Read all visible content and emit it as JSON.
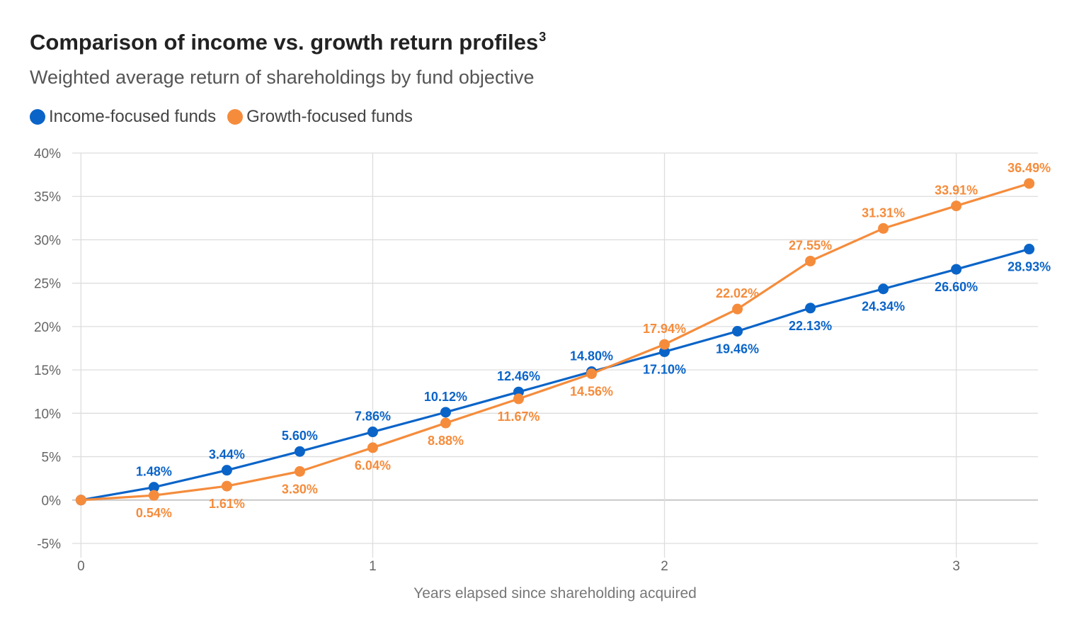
{
  "chart_data": {
    "type": "line",
    "title": "Comparison of income vs. growth return profiles",
    "title_superscript": "3",
    "subtitle": "Weighted average return of shareholdings by fund objective",
    "xlabel": "Years elapsed since shareholding acquired",
    "ylabel": "",
    "x": [
      0,
      0.25,
      0.5,
      0.75,
      1,
      1.25,
      1.5,
      1.75,
      2,
      2.25,
      2.5,
      2.75,
      3,
      3.25
    ],
    "xlim": [
      -0.03,
      3.28
    ],
    "ylim": [
      -5,
      40
    ],
    "x_ticks": [
      0,
      1,
      2,
      3
    ],
    "y_ticks": [
      -5,
      0,
      5,
      10,
      15,
      20,
      25,
      30,
      35,
      40
    ],
    "y_tick_labels": [
      "-5%",
      "0%",
      "5%",
      "10%",
      "15%",
      "20%",
      "25%",
      "30%",
      "35%",
      "40%"
    ],
    "grid": true,
    "legend_position": "top-left",
    "series": [
      {
        "name": "Income-focused funds",
        "color": "#0a64c8",
        "values": [
          0,
          1.48,
          3.44,
          5.6,
          7.86,
          10.12,
          12.46,
          14.8,
          17.1,
          19.46,
          22.13,
          24.34,
          26.6,
          28.93
        ],
        "labels": [
          "",
          "1.48%",
          "3.44%",
          "5.60%",
          "7.86%",
          "10.12%",
          "12.46%",
          "14.80%",
          "17.10%",
          "19.46%",
          "22.13%",
          "24.34%",
          "26.60%",
          "28.93%"
        ],
        "label_pos": [
          "",
          "above",
          "above",
          "above",
          "above",
          "above",
          "above",
          "above",
          "below",
          "below",
          "below",
          "below",
          "below",
          "below"
        ]
      },
      {
        "name": "Growth-focused funds",
        "color": "#f58c3c",
        "values": [
          0,
          0.54,
          1.61,
          3.3,
          6.04,
          8.88,
          11.67,
          14.56,
          17.94,
          22.02,
          27.55,
          31.31,
          33.91,
          36.49
        ],
        "labels": [
          "",
          "0.54%",
          "1.61%",
          "3.30%",
          "6.04%",
          "8.88%",
          "11.67%",
          "14.56%",
          "17.94%",
          "22.02%",
          "27.55%",
          "31.31%",
          "33.91%",
          "36.49%"
        ],
        "label_pos": [
          "",
          "below",
          "below",
          "below",
          "below",
          "below",
          "below",
          "below",
          "above",
          "above",
          "above",
          "above",
          "above",
          "above"
        ]
      }
    ]
  }
}
